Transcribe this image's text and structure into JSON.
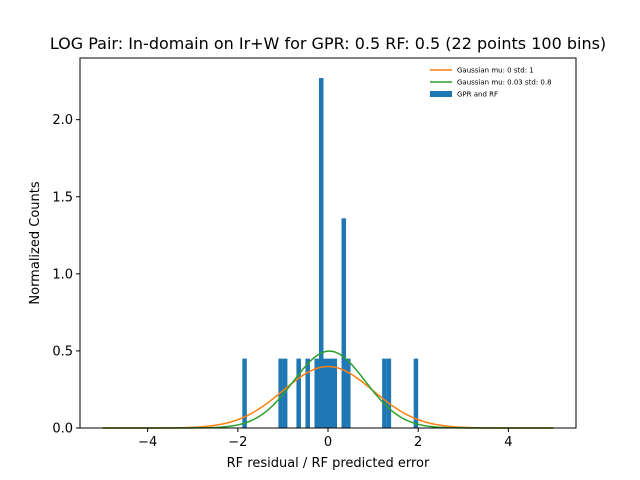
{
  "chart_data": {
    "type": "bar",
    "title": "LOG Pair: In-domain on Ir+W for GPR: 0.5 RF: 0.5 (22 points 100 bins)",
    "xlabel": "RF residual / RF predicted error",
    "ylabel": "Normalized Counts",
    "xlim": [
      -5.5,
      5.5
    ],
    "ylim": [
      0,
      2.4
    ],
    "xticks": [
      -4,
      -2,
      0,
      2,
      4
    ],
    "xtick_labels": [
      "−4",
      "−2",
      "0",
      "2",
      "4"
    ],
    "yticks": [
      0.0,
      0.5,
      1.0,
      1.5,
      2.0
    ],
    "ytick_labels": [
      "0.0",
      "0.5",
      "1.0",
      "1.5",
      "2.0"
    ],
    "grid": false,
    "legend_position": "top-right",
    "histogram": {
      "name": "GPR and RF",
      "color": "#1f77b4",
      "bin_width": 0.1,
      "bins": [
        {
          "x": -1.85,
          "height": 0.45
        },
        {
          "x": -1.05,
          "height": 0.45
        },
        {
          "x": -0.95,
          "height": 0.45
        },
        {
          "x": -0.65,
          "height": 0.45
        },
        {
          "x": -0.45,
          "height": 0.45
        },
        {
          "x": -0.25,
          "height": 0.45
        },
        {
          "x": -0.15,
          "height": 2.27
        },
        {
          "x": -0.05,
          "height": 0.45
        },
        {
          "x": 0.05,
          "height": 0.45
        },
        {
          "x": 0.15,
          "height": 0.45
        },
        {
          "x": 0.35,
          "height": 1.36
        },
        {
          "x": 0.45,
          "height": 0.45
        },
        {
          "x": 1.25,
          "height": 0.45
        },
        {
          "x": 1.35,
          "height": 0.45
        },
        {
          "x": 1.95,
          "height": 0.45
        }
      ]
    },
    "curves": [
      {
        "name": "Gaussian mu: 0 std: 1",
        "mu": 0,
        "std": 1,
        "color": "#ff7f0e",
        "x_range": [
          -5,
          5
        ]
      },
      {
        "name": "Gaussian mu: 0.03 std: 0.8",
        "mu": 0.03,
        "std": 0.8,
        "color": "#2ca02c",
        "x_range": [
          -5,
          5
        ]
      }
    ]
  }
}
